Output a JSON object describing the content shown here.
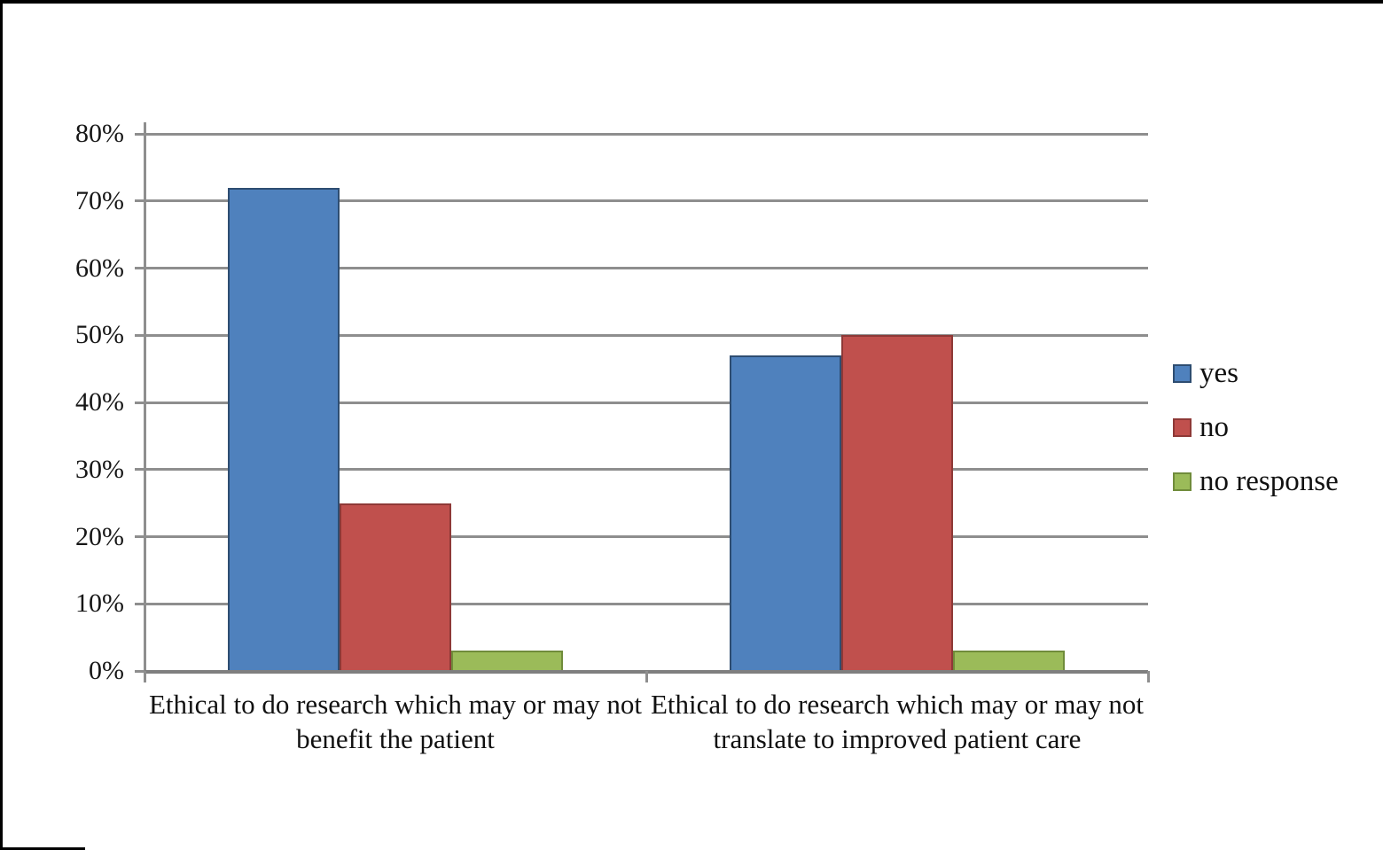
{
  "chart_data": {
    "type": "bar",
    "title": "",
    "xlabel": "",
    "ylabel": "",
    "categories": [
      "Ethical to do research which may or may not benefit the patient",
      "Ethical to do research which may or may not translate to improved patient care"
    ],
    "series": [
      {
        "name": "yes",
        "color": "#4f81bd",
        "border_color": "#2e4d71",
        "values": [
          72,
          47
        ]
      },
      {
        "name": "no",
        "color": "#c0504d",
        "border_color": "#8e3937",
        "values": [
          25,
          50
        ]
      },
      {
        "name": "no response",
        "color": "#9bbb59",
        "border_color": "#708c3b",
        "values": [
          3,
          3
        ]
      }
    ],
    "ylim": [
      0,
      80
    ],
    "ytick_step": 10,
    "ytick_labels": [
      "0%",
      "10%",
      "20%",
      "30%",
      "40%",
      "50%",
      "60%",
      "70%",
      "80%"
    ],
    "grid": true,
    "grid_color": "#8e8e8e",
    "axis_color": "#8e8e8e",
    "legend_position": "right",
    "legend_labels": [
      "yes",
      "no",
      "no response"
    ]
  }
}
